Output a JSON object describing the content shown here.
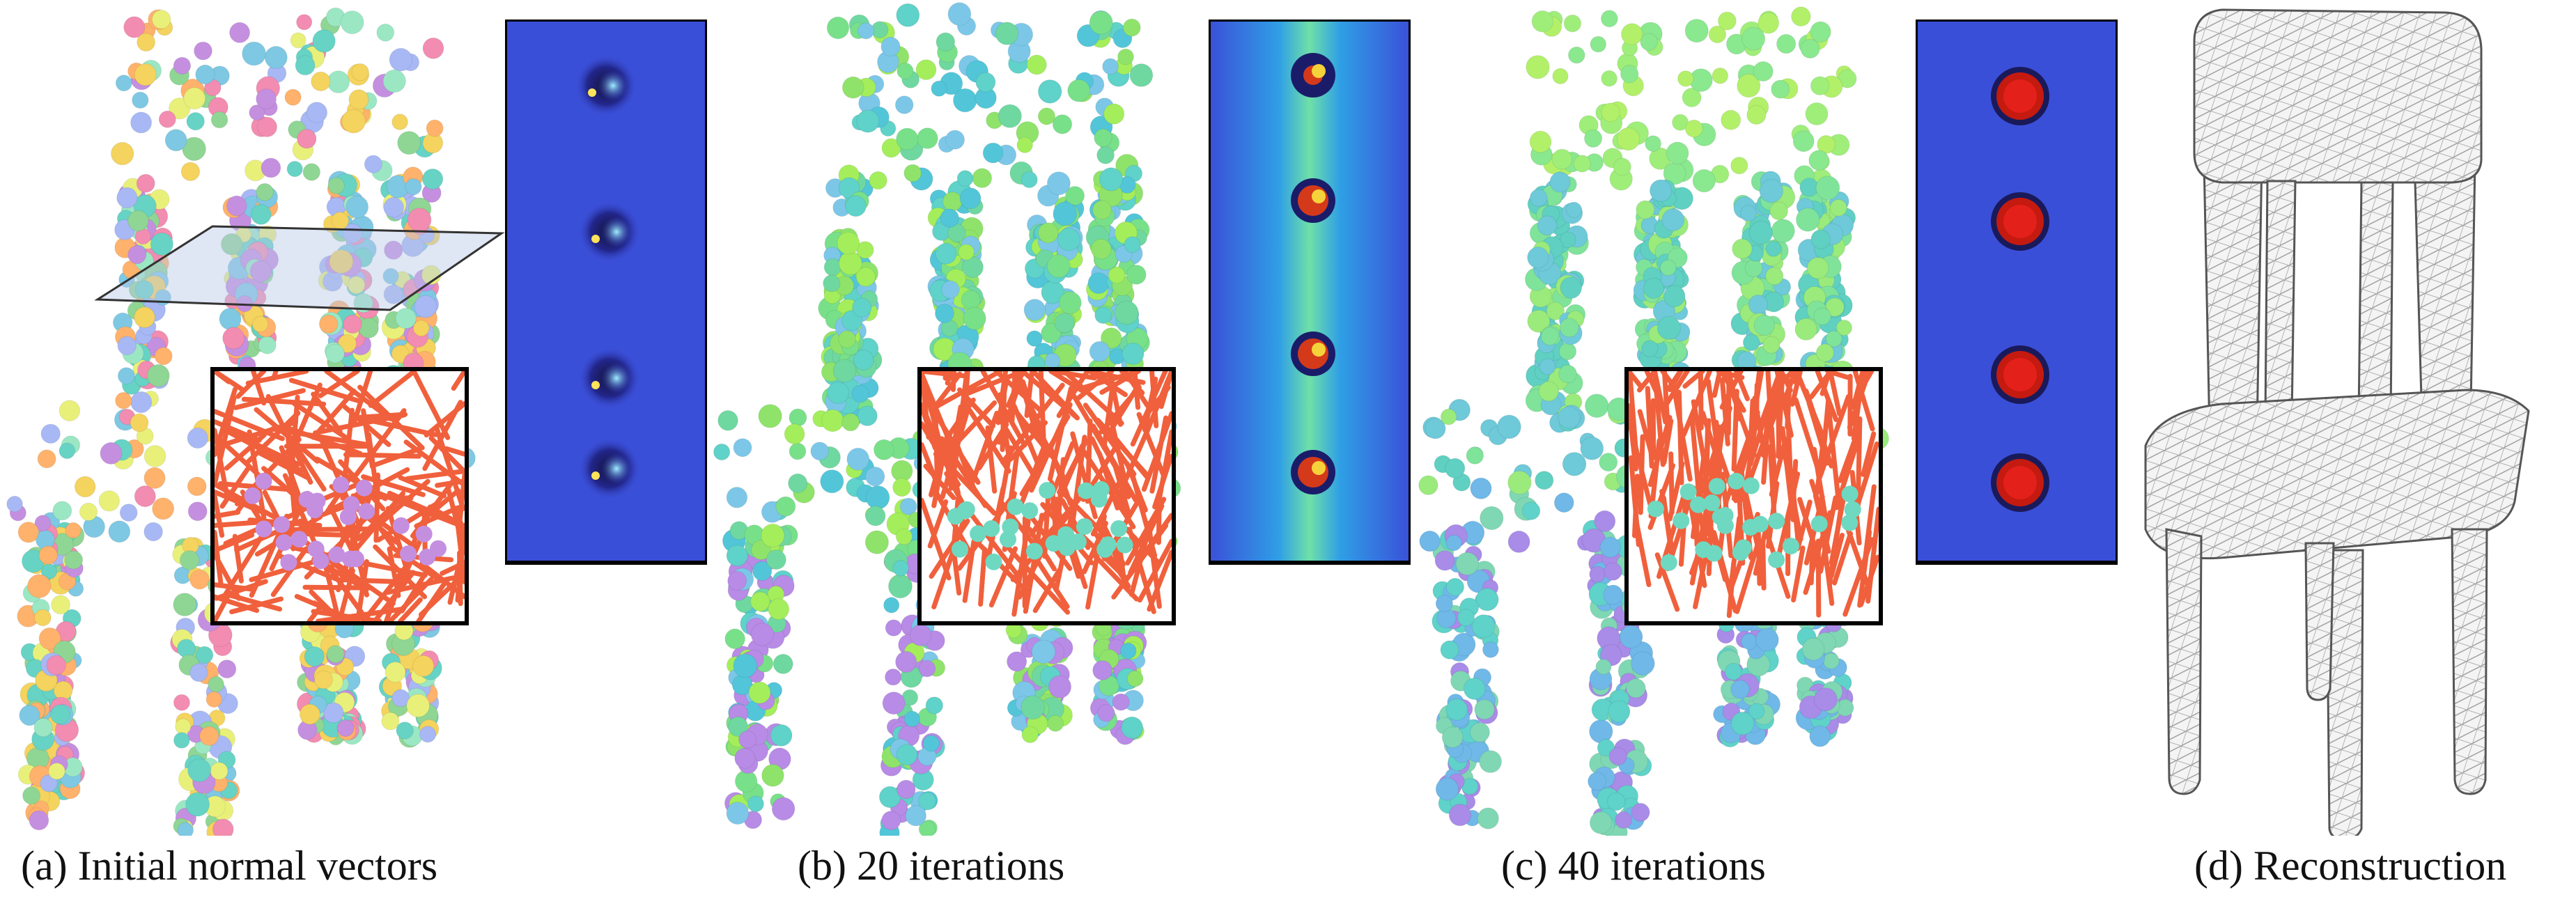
{
  "figure": {
    "panels": [
      {
        "id": "a",
        "caption": "(a) Initial normal vectors",
        "palette": "random",
        "orientation": "random"
      },
      {
        "id": "b",
        "caption": "(b) 20 iterations",
        "palette": "green-cyan",
        "orientation": "partial"
      },
      {
        "id": "c",
        "caption": "(c) 40 iterations",
        "palette": "green-cyan-smooth",
        "orientation": "converged"
      },
      {
        "id": "d",
        "caption": "(d) Reconstruction",
        "palette": "wireframe",
        "orientation": "mesh"
      }
    ],
    "colors": {
      "normal_arrows": "#f0603c",
      "field_background": "#3a4fd8",
      "field_hot": "#d01a10",
      "wireframe": "#8a8a8a",
      "inset_border": "#000000"
    }
  }
}
